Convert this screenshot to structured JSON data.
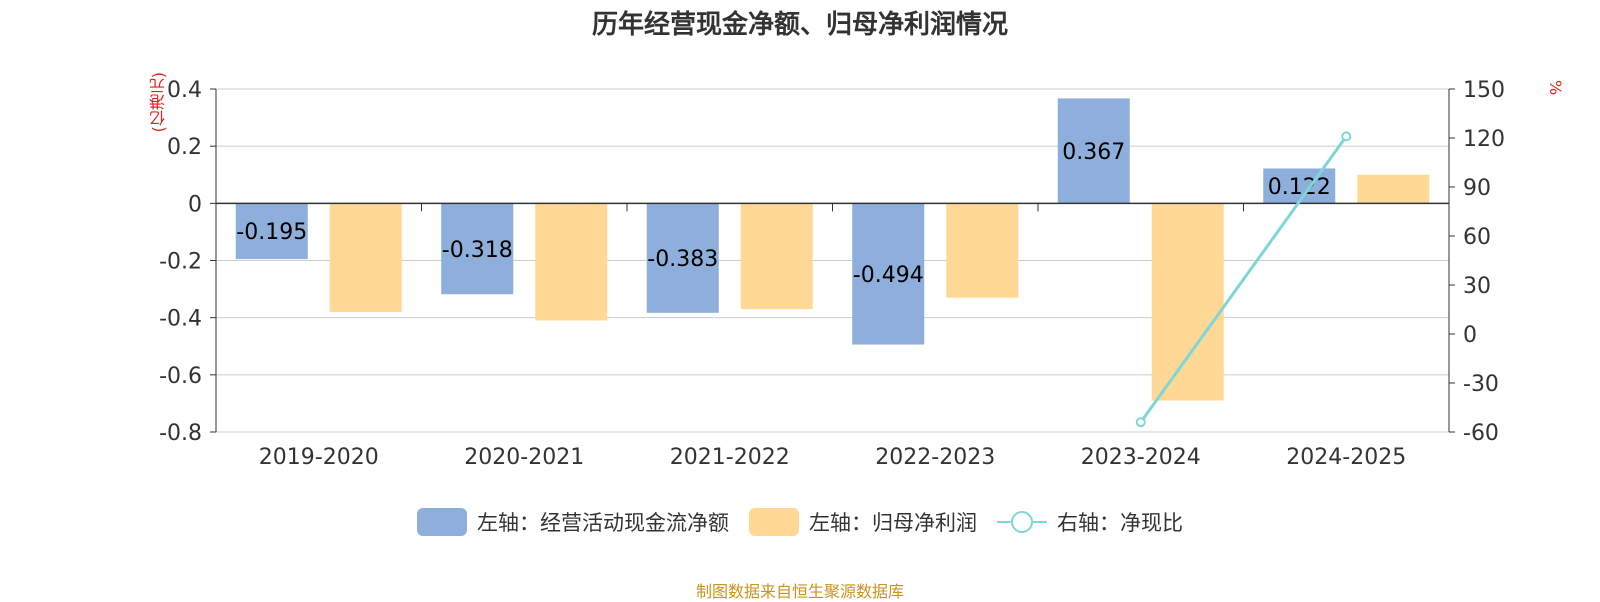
{
  "title": "历年经营现金净额、归母净利润情况",
  "left_unit": "(亿港元)",
  "right_unit": "%",
  "source": "制图数据来自恒生聚源数据库",
  "chart_data": {
    "type": "bar",
    "categories": [
      "2019-2020",
      "2020-2021",
      "2021-2022",
      "2022-2023",
      "2023-2024",
      "2024-2025"
    ],
    "series": [
      {
        "name": "左轴：经营活动现金流净额",
        "axis": "left",
        "type": "bar",
        "color": "#8eaedb",
        "values": [
          -0.195,
          -0.318,
          -0.383,
          -0.494,
          0.367,
          0.122
        ],
        "labels": [
          "-0.195",
          "-0.318",
          "-0.383",
          "-0.494",
          "0.367",
          "0.122"
        ]
      },
      {
        "name": "左轴：归母净利润",
        "axis": "left",
        "type": "bar",
        "color": "#ffd896",
        "values": [
          -0.38,
          -0.41,
          -0.37,
          -0.33,
          -0.69,
          0.1
        ]
      },
      {
        "name": "右轴：净现比",
        "axis": "right",
        "type": "line",
        "color": "#7fd6d6",
        "values": [
          null,
          null,
          null,
          null,
          -54,
          121
        ]
      }
    ],
    "left_axis": {
      "min": -0.8,
      "max": 0.4,
      "ticks": [
        0.4,
        0.2,
        0,
        -0.2,
        -0.4,
        -0.6,
        -0.8
      ],
      "tick_labels": [
        "0.4",
        "0.2",
        "0",
        "-0.2",
        "-0.4",
        "-0.6",
        "-0.8"
      ]
    },
    "right_axis": {
      "min": -60,
      "max": 150,
      "ticks": [
        150,
        120,
        90,
        60,
        30,
        0,
        -30,
        -60
      ],
      "tick_labels": [
        "150",
        "120",
        "90",
        "60",
        "30",
        "0",
        "-30",
        "-60"
      ]
    },
    "grid": true,
    "legend_position": "bottom"
  }
}
